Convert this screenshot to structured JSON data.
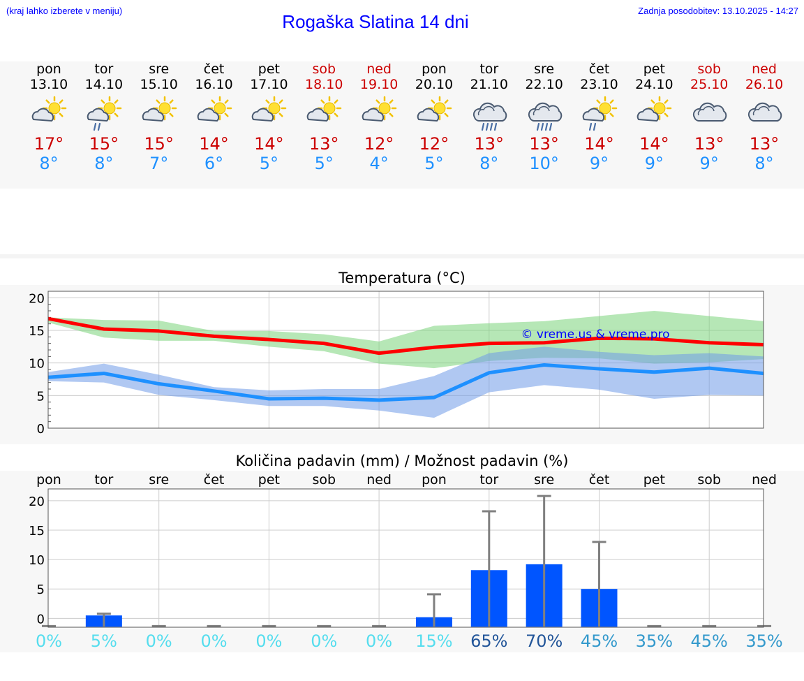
{
  "header": {
    "hint": "(kraj lahko izberete v meniju)",
    "title": "Rogaška Slatina 14 dni",
    "updated": "Zadnja posodobitev: 13.10.2025 - 14:27"
  },
  "colors": {
    "max": "#cc0000",
    "min": "#1e90ff",
    "link": "#0000ff",
    "bar": "#0055ff",
    "pop_low": "#55ddee",
    "pop_high": "#225599"
  },
  "days": [
    {
      "name": "pon",
      "date": "13.10",
      "weekend": false,
      "icon": "partly-cloudy-icon",
      "max": "17°",
      "min": "8°"
    },
    {
      "name": "tor",
      "date": "14.10",
      "weekend": false,
      "icon": "partly-cloudy-light-rain-icon",
      "max": "15°",
      "min": "8°"
    },
    {
      "name": "sre",
      "date": "15.10",
      "weekend": false,
      "icon": "partly-cloudy-icon",
      "max": "15°",
      "min": "7°"
    },
    {
      "name": "čet",
      "date": "16.10",
      "weekend": false,
      "icon": "partly-cloudy-icon",
      "max": "14°",
      "min": "6°"
    },
    {
      "name": "pet",
      "date": "17.10",
      "weekend": false,
      "icon": "partly-cloudy-icon",
      "max": "14°",
      "min": "5°"
    },
    {
      "name": "sob",
      "date": "18.10",
      "weekend": true,
      "icon": "partly-cloudy-icon",
      "max": "13°",
      "min": "5°"
    },
    {
      "name": "ned",
      "date": "19.10",
      "weekend": true,
      "icon": "partly-cloudy-icon",
      "max": "12°",
      "min": "4°"
    },
    {
      "name": "pon",
      "date": "20.10",
      "weekend": false,
      "icon": "partly-cloudy-icon",
      "max": "12°",
      "min": "5°"
    },
    {
      "name": "tor",
      "date": "21.10",
      "weekend": false,
      "icon": "cloudy-rain-icon",
      "max": "13°",
      "min": "8°"
    },
    {
      "name": "sre",
      "date": "22.10",
      "weekend": false,
      "icon": "cloudy-rain-icon",
      "max": "13°",
      "min": "10°"
    },
    {
      "name": "čet",
      "date": "23.10",
      "weekend": false,
      "icon": "partly-cloudy-light-rain-icon",
      "max": "14°",
      "min": "9°"
    },
    {
      "name": "pet",
      "date": "24.10",
      "weekend": false,
      "icon": "partly-cloudy-icon",
      "max": "14°",
      "min": "9°"
    },
    {
      "name": "sob",
      "date": "25.10",
      "weekend": true,
      "icon": "cloudy-icon",
      "max": "13°",
      "min": "9°"
    },
    {
      "name": "ned",
      "date": "26.10",
      "weekend": true,
      "icon": "cloudy-icon",
      "max": "13°",
      "min": "8°"
    }
  ],
  "chart_data": [
    {
      "type": "line",
      "title": "Temperatura (°C)",
      "watermark": "© vreme.us & vreme.pro",
      "x": [
        0,
        1,
        2,
        3,
        4,
        5,
        6,
        7,
        8,
        9,
        10,
        11,
        12,
        13
      ],
      "ylim": [
        0,
        21
      ],
      "yticks": [
        0,
        5,
        10,
        15,
        20
      ],
      "series": [
        {
          "name": "max",
          "color": "#ff0000",
          "values": [
            16.8,
            15.2,
            14.9,
            14.1,
            13.6,
            13.0,
            11.5,
            12.4,
            13.0,
            13.1,
            13.8,
            13.7,
            13.1,
            12.8
          ],
          "band_low": [
            16.2,
            13.9,
            13.4,
            13.4,
            12.5,
            11.8,
            9.9,
            9.2,
            10.3,
            10.8,
            10.7,
            9.9,
            10.1,
            10.6
          ],
          "band_high": [
            17.0,
            16.6,
            16.5,
            14.9,
            14.9,
            14.4,
            13.3,
            15.7,
            16.1,
            16.4,
            17.2,
            18.0,
            17.2,
            16.4
          ]
        },
        {
          "name": "min",
          "color": "#1e90ff",
          "values": [
            7.8,
            8.4,
            6.8,
            5.7,
            4.5,
            4.6,
            4.3,
            4.7,
            8.5,
            9.7,
            9.1,
            8.6,
            9.2,
            8.4
          ],
          "band_low": [
            7.2,
            7.0,
            5.1,
            4.3,
            3.4,
            3.4,
            2.7,
            1.6,
            5.5,
            6.6,
            5.9,
            4.5,
            5.1,
            5.0
          ],
          "band_high": [
            8.6,
            9.9,
            8.2,
            6.3,
            5.8,
            6.0,
            6.0,
            8.0,
            11.5,
            12.5,
            11.7,
            11.2,
            11.5,
            11.0
          ]
        }
      ]
    },
    {
      "type": "bar",
      "title": "Količina padavin (mm) / Možnost padavin (%)",
      "categories": [
        "pon",
        "tor",
        "sre",
        "čet",
        "pet",
        "sob",
        "ned",
        "pon",
        "tor",
        "sre",
        "čet",
        "pet",
        "sob",
        "ned"
      ],
      "values": [
        0,
        0.5,
        0,
        0,
        0,
        0,
        0,
        0.2,
        8.2,
        9.2,
        5.0,
        0,
        0,
        0
      ],
      "max_values": [
        0,
        0.8,
        0,
        0,
        0,
        0,
        0,
        4.1,
        18.2,
        20.8,
        13.0,
        0,
        0,
        0
      ],
      "probability": [
        "0%",
        "5%",
        "0%",
        "0%",
        "0%",
        "0%",
        "0%",
        "15%",
        "65%",
        "70%",
        "45%",
        "35%",
        "45%",
        "35%"
      ],
      "probability_num": [
        0,
        5,
        0,
        0,
        0,
        0,
        0,
        15,
        65,
        70,
        45,
        35,
        45,
        35
      ],
      "ylim": [
        -1.5,
        22
      ],
      "yticks": [
        0,
        5,
        10,
        15,
        20
      ]
    }
  ]
}
